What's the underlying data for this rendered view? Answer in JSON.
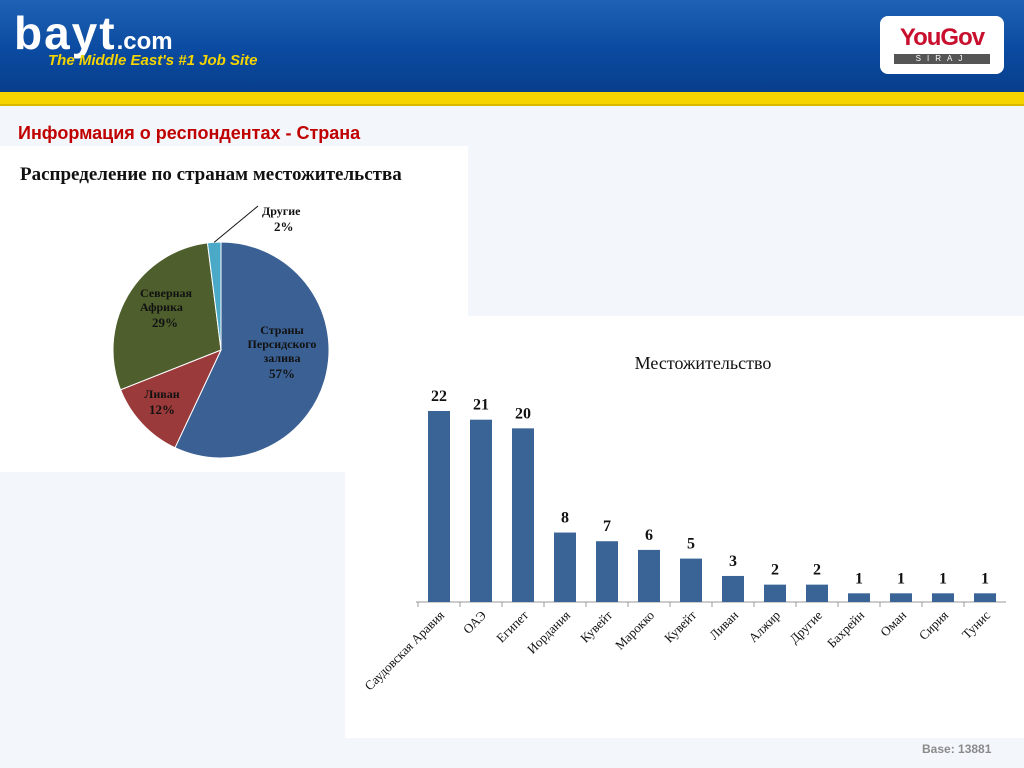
{
  "header": {
    "logo_main": "bayt",
    "logo_com": ".com",
    "logo_tagline": "The Middle East's #1 Job Site",
    "partner_name": "YouGov",
    "partner_sub": "SIRAJ"
  },
  "slide_title": "Информация о респондентах - Страна",
  "base_note": "Base: 13881",
  "colors": {
    "header_blue": "#0a4aa0",
    "stripe_yellow": "#f5d400",
    "title_red": "#c00000",
    "bar_blue": "#3a6496"
  },
  "chart_data": [
    {
      "type": "pie",
      "title": "Распределение по странам местожительства",
      "slices": [
        {
          "name": "Страны Персидского залива",
          "lines": [
            "Страны",
            "Персидского",
            "залива"
          ],
          "value": 57,
          "label": "57%",
          "color": "#3b6194"
        },
        {
          "name": "Ливан",
          "lines": [
            "Ливан"
          ],
          "value": 12,
          "label": "12%",
          "color": "#9b3a3a"
        },
        {
          "name": "Северная Африка",
          "lines": [
            "Северная",
            "Африка"
          ],
          "value": 29,
          "label": "29%",
          "color": "#4e5e2c"
        },
        {
          "name": "Другие",
          "lines": [
            "Другие"
          ],
          "value": 2,
          "label": "2%",
          "color": "#4aa9c6"
        }
      ]
    },
    {
      "type": "bar",
      "title": "Местожительство",
      "categories": [
        "Саудовская Аравия",
        "ОАЭ",
        "Египет",
        "Иордания",
        "Кувейт",
        "Марокко",
        "Кувейт",
        "Ливан",
        "Алжир",
        "Другие",
        "Бахрейн",
        "Оман",
        "Сирия",
        "Тунис"
      ],
      "values": [
        22,
        21,
        20,
        8,
        7,
        6,
        5,
        3,
        2,
        2,
        1,
        1,
        1,
        1
      ],
      "ylim": [
        0,
        22
      ],
      "color": "#3a6496"
    }
  ]
}
